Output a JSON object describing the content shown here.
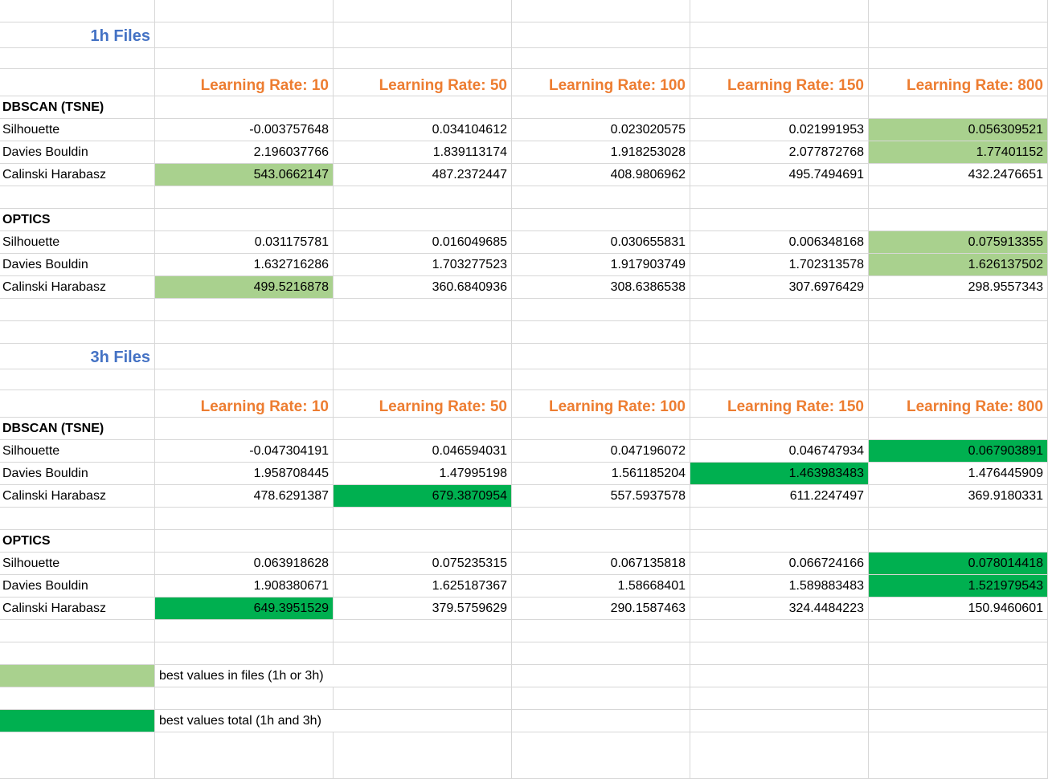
{
  "colors": {
    "best_in_files": "#a9d18e",
    "best_total": "#00b050",
    "section_title": "#4472c4",
    "header": "#ed7d31"
  },
  "headers": [
    "Learning Rate: 10",
    "Learning Rate: 50",
    "Learning Rate: 100",
    "Learning Rate: 150",
    "Learning Rate: 800"
  ],
  "sections": [
    {
      "title": "1h Files",
      "blocks": [
        {
          "method": "DBSCAN (TSNE)",
          "rows": [
            {
              "metric": "Silhouette",
              "values": [
                "-0.003757648",
                "0.034104612",
                "0.023020575",
                "0.021991953",
                "0.056309521"
              ],
              "highlight": [
                "",
                "",
                "",
                "",
                "light"
              ]
            },
            {
              "metric": "Davies Bouldin",
              "values": [
                "2.196037766",
                "1.839113174",
                "1.918253028",
                "2.077872768",
                "1.77401152"
              ],
              "highlight": [
                "",
                "",
                "",
                "",
                "light"
              ]
            },
            {
              "metric": "Calinski Harabasz",
              "values": [
                "543.0662147",
                "487.2372447",
                "408.9806962",
                "495.7494691",
                "432.2476651"
              ],
              "highlight": [
                "light",
                "",
                "",
                "",
                ""
              ]
            }
          ]
        },
        {
          "method": "OPTICS",
          "rows": [
            {
              "metric": "Silhouette",
              "values": [
                "0.031175781",
                "0.016049685",
                "0.030655831",
                "0.006348168",
                "0.075913355"
              ],
              "highlight": [
                "",
                "",
                "",
                "",
                "light"
              ]
            },
            {
              "metric": "Davies Bouldin",
              "values": [
                "1.632716286",
                "1.703277523",
                "1.917903749",
                "1.702313578",
                "1.626137502"
              ],
              "highlight": [
                "",
                "",
                "",
                "",
                "light"
              ]
            },
            {
              "metric": "Calinski Harabasz",
              "values": [
                "499.5216878",
                "360.6840936",
                "308.6386538",
                "307.6976429",
                "298.9557343"
              ],
              "highlight": [
                "light",
                "",
                "",
                "",
                ""
              ]
            }
          ]
        }
      ]
    },
    {
      "title": "3h Files",
      "blocks": [
        {
          "method": "DBSCAN (TSNE)",
          "rows": [
            {
              "metric": "Silhouette",
              "values": [
                "-0.047304191",
                "0.046594031",
                "0.047196072",
                "0.046747934",
                "0.067903891"
              ],
              "highlight": [
                "",
                "",
                "",
                "",
                "dark"
              ]
            },
            {
              "metric": "Davies Bouldin",
              "values": [
                "1.958708445",
                "1.47995198",
                "1.561185204",
                "1.463983483",
                "1.476445909"
              ],
              "highlight": [
                "",
                "",
                "",
                "dark",
                ""
              ]
            },
            {
              "metric": "Calinski Harabasz",
              "values": [
                "478.6291387",
                "679.3870954",
                "557.5937578",
                "611.2247497",
                "369.9180331"
              ],
              "highlight": [
                "",
                "dark",
                "",
                "",
                ""
              ]
            }
          ]
        },
        {
          "method": "OPTICS",
          "rows": [
            {
              "metric": "Silhouette",
              "values": [
                "0.063918628",
                "0.075235315",
                "0.067135818",
                "0.066724166",
                "0.078014418"
              ],
              "highlight": [
                "",
                "",
                "",
                "",
                "dark"
              ]
            },
            {
              "metric": "Davies Bouldin",
              "values": [
                "1.908380671",
                "1.625187367",
                "1.58668401",
                "1.589883483",
                "1.521979543"
              ],
              "highlight": [
                "",
                "",
                "",
                "",
                "dark"
              ]
            },
            {
              "metric": "Calinski Harabasz",
              "values": [
                "649.3951529",
                "379.5759629",
                "290.1587463",
                "324.4484223",
                "150.9460601"
              ],
              "highlight": [
                "dark",
                "",
                "",
                "",
                ""
              ]
            }
          ]
        }
      ]
    }
  ],
  "legend": [
    {
      "swatch": "light",
      "text": "best values in files (1h or 3h)"
    },
    {
      "swatch": "dark",
      "text": "best values total (1h and 3h)"
    }
  ]
}
